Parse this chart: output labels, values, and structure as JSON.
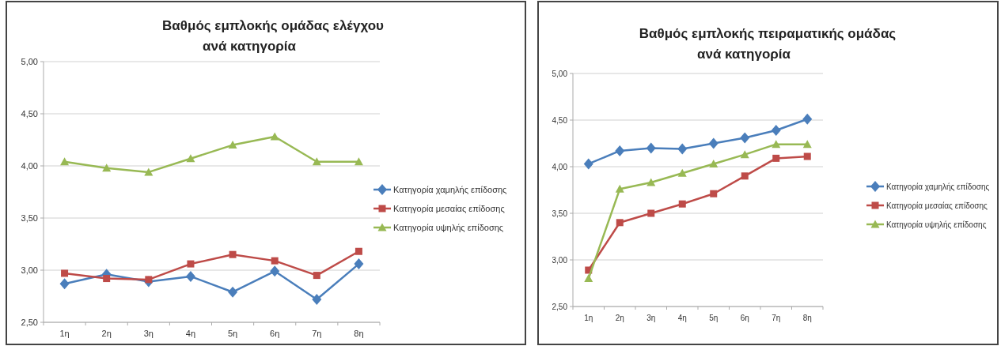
{
  "chart_data": [
    {
      "type": "line",
      "title": "Βαθμός εμπλοκής ομάδας ελέγχου\nανά κατηγορία",
      "categories": [
        "1η",
        "2η",
        "3η",
        "4η",
        "5η",
        "6η",
        "7η",
        "8η"
      ],
      "series": [
        {
          "name": "Κατηγορία χαμηλής επίδοσης",
          "color": "#4a7ebb",
          "marker": "diamond",
          "values": [
            2.87,
            2.96,
            2.89,
            2.94,
            2.79,
            2.99,
            2.72,
            3.06
          ]
        },
        {
          "name": "Κατηγορία μεσαίας επίδοσης",
          "color": "#be4b48",
          "marker": "square",
          "values": [
            2.97,
            2.92,
            2.91,
            3.06,
            3.15,
            3.09,
            2.95,
            3.18
          ]
        },
        {
          "name": "Κατηγορία υψηλής επίδοσης",
          "color": "#98b954",
          "marker": "triangle",
          "values": [
            4.04,
            3.98,
            3.94,
            4.07,
            4.2,
            4.28,
            4.04,
            4.04
          ]
        }
      ],
      "ylim": [
        2.5,
        5
      ],
      "yticks": [
        {
          "value": 2.5,
          "label": "2,50"
        },
        {
          "value": 3,
          "label": "3,00"
        },
        {
          "value": 3.5,
          "label": "3,50"
        },
        {
          "value": 4,
          "label": "4,00"
        },
        {
          "value": 4.5,
          "label": "4,50"
        },
        {
          "value": 5,
          "label": "5,00"
        }
      ],
      "grid": "y",
      "legend": "right"
    },
    {
      "type": "line",
      "title": "Βαθμός εμπλοκής πειραματικής ομάδας\nανά κατηγορία",
      "categories": [
        "1η",
        "2η",
        "3η",
        "4η",
        "5η",
        "6η",
        "7η",
        "8η"
      ],
      "series": [
        {
          "name": "Κατηγορία χαμηλής επίδοσης",
          "color": "#4a7ebb",
          "marker": "diamond",
          "values": [
            4.03,
            4.17,
            4.2,
            4.19,
            4.25,
            4.31,
            4.39,
            4.51
          ]
        },
        {
          "name": "Κατηγορία μεσαίας επίδοσης",
          "color": "#be4b48",
          "marker": "square",
          "values": [
            2.89,
            3.4,
            3.5,
            3.6,
            3.71,
            3.9,
            4.09,
            4.11
          ]
        },
        {
          "name": "Κατηγορία υψηλής επίδοσης",
          "color": "#98b954",
          "marker": "triangle",
          "values": [
            2.8,
            3.76,
            3.83,
            3.93,
            4.03,
            4.13,
            4.24,
            4.24
          ]
        }
      ],
      "ylim": [
        2.5,
        5
      ],
      "yticks": [
        {
          "value": 2.5,
          "label": "2,50"
        },
        {
          "value": 3,
          "label": "3,00"
        },
        {
          "value": 3.5,
          "label": "3,50"
        },
        {
          "value": 4,
          "label": "4,00"
        },
        {
          "value": 4.5,
          "label": "4,50"
        },
        {
          "value": 5,
          "label": "5,00"
        }
      ],
      "grid": "y",
      "legend": "right"
    }
  ]
}
